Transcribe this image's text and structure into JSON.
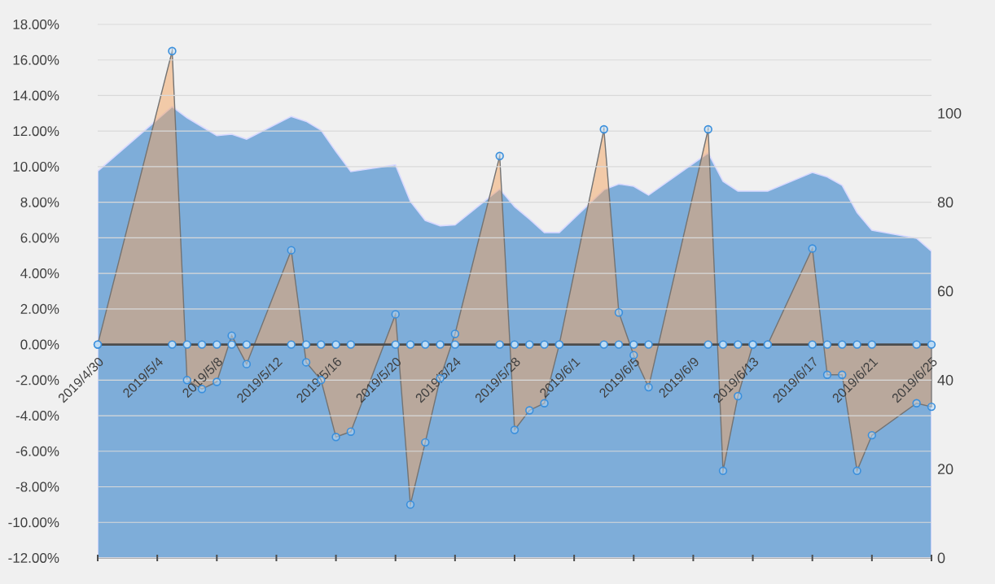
{
  "chart_data": {
    "type": "area",
    "grid": "y",
    "xlim": [
      "2019-04-30",
      "2019-06-25"
    ],
    "xticks": [
      {
        "value": "2019-04-30",
        "label": "2019/4/30"
      },
      {
        "value": "2019-05-04",
        "label": "2019/5/4"
      },
      {
        "value": "2019-05-08",
        "label": "2019/5/8"
      },
      {
        "value": "2019-05-12",
        "label": "2019/5/12"
      },
      {
        "value": "2019-05-16",
        "label": "2019/5/16"
      },
      {
        "value": "2019-05-20",
        "label": "2019/5/20"
      },
      {
        "value": "2019-05-24",
        "label": "2019/5/24"
      },
      {
        "value": "2019-05-28",
        "label": "2019/5/28"
      },
      {
        "value": "2019-06-01",
        "label": "2019/6/1"
      },
      {
        "value": "2019-06-05",
        "label": "2019/6/5"
      },
      {
        "value": "2019-06-09",
        "label": "2019/6/9"
      },
      {
        "value": "2019-06-13",
        "label": "2019/6/13"
      },
      {
        "value": "2019-06-17",
        "label": "2019/6/17"
      },
      {
        "value": "2019-06-21",
        "label": "2019/6/21"
      },
      {
        "value": "2019-06-25",
        "label": "2019/6/25"
      }
    ],
    "ylim": [
      -12,
      18
    ],
    "yticks": [
      {
        "value": -12,
        "label": "-12.00%"
      },
      {
        "value": -10,
        "label": "-10.00%"
      },
      {
        "value": -8,
        "label": "-8.00%"
      },
      {
        "value": -6,
        "label": "-6.00%"
      },
      {
        "value": -4,
        "label": "-4.00%"
      },
      {
        "value": -2,
        "label": "-2.00%"
      },
      {
        "value": 0,
        "label": "0.00%"
      },
      {
        "value": 2,
        "label": "2.00%"
      },
      {
        "value": 4,
        "label": "4.00%"
      },
      {
        "value": 6,
        "label": "6.00%"
      },
      {
        "value": 8,
        "label": "8.00%"
      },
      {
        "value": 10,
        "label": "10.00%"
      },
      {
        "value": 12,
        "label": "12.00%"
      },
      {
        "value": 14,
        "label": "14.00%"
      },
      {
        "value": 16,
        "label": "16.00%"
      },
      {
        "value": 18,
        "label": "18.00%"
      }
    ],
    "y2lim": [
      0,
      120
    ],
    "y2ticks": [
      0,
      20,
      40,
      60,
      80,
      100
    ],
    "x": [
      "2019-04-30",
      "2019-05-05",
      "2019-05-06",
      "2019-05-07",
      "2019-05-08",
      "2019-05-09",
      "2019-05-10",
      "2019-05-13",
      "2019-05-14",
      "2019-05-15",
      "2019-05-16",
      "2019-05-17",
      "2019-05-20",
      "2019-05-21",
      "2019-05-22",
      "2019-05-23",
      "2019-05-24",
      "2019-05-27",
      "2019-05-28",
      "2019-05-29",
      "2019-05-30",
      "2019-05-31",
      "2019-06-03",
      "2019-06-04",
      "2019-06-05",
      "2019-06-06",
      "2019-06-10",
      "2019-06-11",
      "2019-06-12",
      "2019-06-13",
      "2019-06-14",
      "2019-06-17",
      "2019-06-18",
      "2019-06-19",
      "2019-06-20",
      "2019-06-21",
      "2019-06-24",
      "2019-06-25"
    ],
    "series": [
      {
        "type": "area",
        "axis": "y2",
        "color": "#7eadd9",
        "values": [
          87,
          101.5,
          99,
          97,
          95,
          95.3,
          94.2,
          99.3,
          98.2,
          96.2,
          91.4,
          86.9,
          88.4,
          80.2,
          75.9,
          74.7,
          74.9,
          83,
          79,
          76.2,
          73.2,
          73.2,
          82.8,
          84.1,
          83.6,
          81.6,
          91.1,
          84.7,
          82.5,
          82.5,
          82.5,
          86.7,
          85.7,
          83.8,
          77.7,
          73.7,
          71.9,
          69
        ]
      },
      {
        "color": "#f4a460",
        "marker": "circle",
        "values": [
          0,
          16.5,
          -2.0,
          -2.5,
          -2.1,
          0.5,
          -1.1,
          5.3,
          -1.0,
          -2.0,
          -5.2,
          -4.9,
          1.7,
          -9.0,
          -5.5,
          -1.9,
          0.6,
          10.6,
          -4.8,
          -3.7,
          -3.3,
          0,
          12.1,
          1.8,
          -0.6,
          -2.4,
          12.1,
          -7.1,
          -2.9,
          0,
          0,
          5.4,
          -1.7,
          -1.7,
          -7.1,
          -5.1,
          -3.3,
          -3.5
        ]
      },
      {
        "type": "scatter",
        "color": "#3a8fdc",
        "marker": "circle",
        "values": [
          0,
          0,
          0,
          0,
          0,
          0,
          0,
          0,
          0,
          0,
          0,
          0,
          0,
          0,
          0,
          0,
          0,
          0,
          0,
          0,
          0,
          0,
          0,
          0,
          0,
          0,
          0,
          0,
          0,
          0,
          0,
          0,
          0,
          0,
          0,
          0,
          0,
          0
        ]
      }
    ]
  }
}
